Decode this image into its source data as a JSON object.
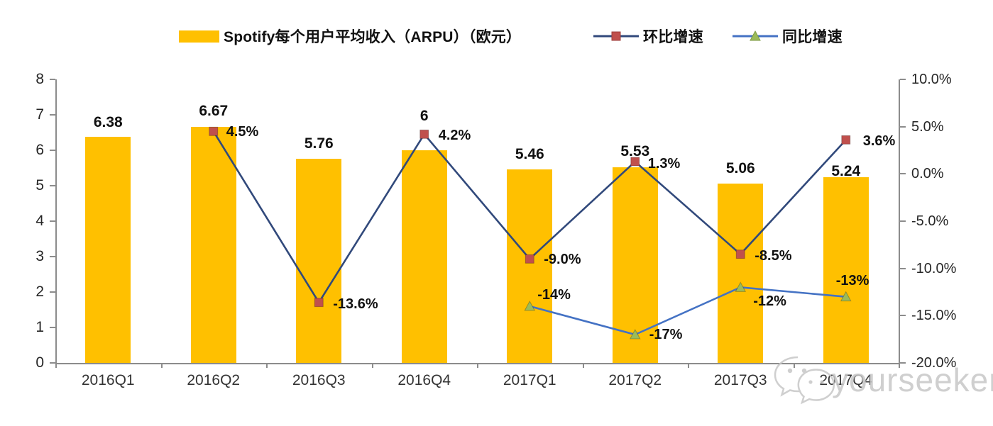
{
  "chart_data": {
    "type": "bar",
    "subtype": "combo-bar-line",
    "categories": [
      "2016Q1",
      "2016Q2",
      "2016Q3",
      "2016Q4",
      "2017Q1",
      "2017Q2",
      "2017Q3",
      "2017Q4"
    ],
    "series": [
      {
        "name": "Spotify每个用户平均收入（ARPU）（欧元）",
        "type": "bar",
        "axis": "left",
        "values": [
          6.38,
          6.67,
          5.76,
          6,
          5.46,
          5.53,
          5.06,
          5.24
        ],
        "labels": [
          "6.38",
          "6.67",
          "5.76",
          "6",
          "5.46",
          "5.53",
          "5.06",
          "5.24"
        ]
      },
      {
        "name": "环比增速",
        "type": "line",
        "axis": "right",
        "marker": "square",
        "values": [
          null,
          4.5,
          -13.6,
          4.2,
          -9.0,
          1.3,
          -8.5,
          3.6
        ],
        "labels": [
          null,
          "4.5%",
          "-13.6%",
          "4.2%",
          "-9.0%",
          "1.3%",
          "-8.5%",
          "3.6%"
        ]
      },
      {
        "name": "同比增速",
        "type": "line",
        "axis": "right",
        "marker": "triangle",
        "values": [
          null,
          null,
          null,
          null,
          -14,
          -17,
          -12,
          -13
        ],
        "labels": [
          null,
          null,
          null,
          null,
          "-14%",
          "-17%",
          "-12%",
          "-13%"
        ]
      }
    ],
    "left_axis": {
      "min": 0,
      "max": 8,
      "tick_step": 1,
      "ticks": [
        "0",
        "1",
        "2",
        "3",
        "4",
        "5",
        "6",
        "7",
        "8"
      ]
    },
    "right_axis": {
      "min": -20,
      "max": 10,
      "tick_step": 5,
      "ticks": [
        "10.0%",
        "5.0%",
        "0.0%",
        "-5.0%",
        "-10.0%",
        "-15.0%",
        "-20.0%"
      ]
    },
    "legend_position": "top",
    "grid": false
  },
  "colors": {
    "bar": "#FFC000",
    "qoq_line": "#31497B",
    "qoq_marker": "#C0504D",
    "yoy_line": "#4472C4",
    "yoy_marker": "#9BBB59",
    "axis": "#8C8C8C",
    "label": "#111111"
  },
  "watermark": {
    "text": "yourseeker",
    "icon": "wechat-icon"
  }
}
